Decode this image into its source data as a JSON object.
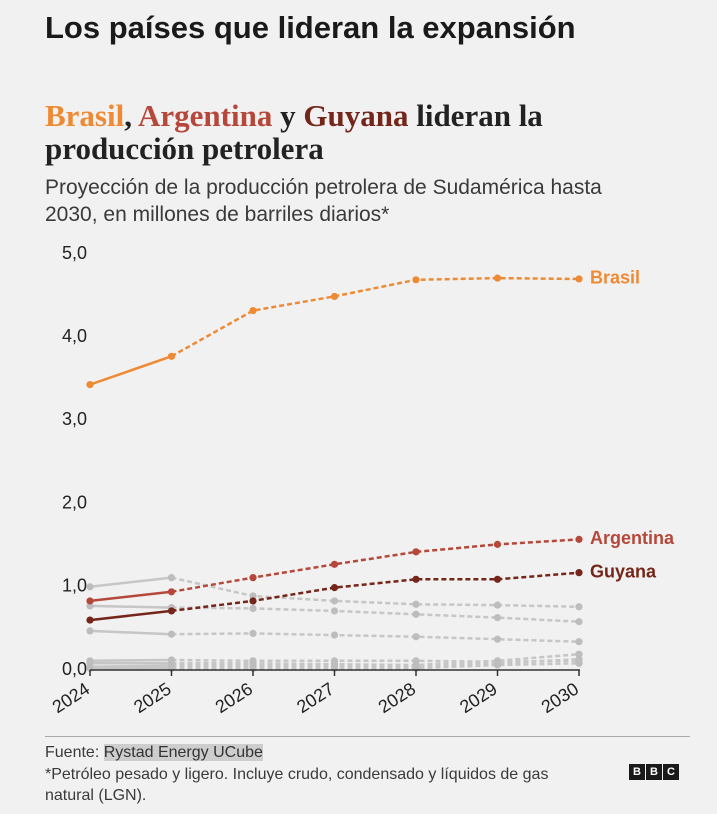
{
  "header": {
    "title": "Los países que lideran la expansión"
  },
  "chart_title": {
    "brasil": "Brasil",
    "sep1": ",",
    "argentina": "Argentina",
    "sep2": "y",
    "guyana": "Guyana",
    "rest": "lideran la producción petrolera"
  },
  "subtitle": "Proyección de la producción petrolera de Sudamérica hasta 2030, en millones de barriles diarios*",
  "colors": {
    "background": "#f1f1f1",
    "text": "#222222",
    "brasil": "#ef8a34",
    "argentina": "#b5483a",
    "guyana": "#74261a",
    "other_countries": "#c6c6c6",
    "axis": "#333333"
  },
  "chart_data": {
    "type": "line",
    "x": [
      2024,
      2025,
      2026,
      2027,
      2028,
      2029,
      2030
    ],
    "x_tick_labels": [
      "2024",
      "2025",
      "2026",
      "2027",
      "2028",
      "2029",
      "2030"
    ],
    "y_ticks": [
      0,
      1,
      2,
      3,
      4,
      5
    ],
    "y_tick_labels": [
      "0,0",
      "1,0",
      "2,0",
      "3,0",
      "4,0",
      "5,0"
    ],
    "xlim": [
      2024,
      2030
    ],
    "ylim": [
      0,
      5
    ],
    "grid": false,
    "dashed_from": 2025,
    "legend_placement": "line-end",
    "series": [
      {
        "name": "Brasil",
        "color": "#ef8a34",
        "highlight": true,
        "values": [
          3.43,
          3.77,
          4.32,
          4.49,
          4.69,
          4.71,
          4.7
        ]
      },
      {
        "name": "Argentina",
        "color": "#b5483a",
        "highlight": true,
        "values": [
          0.83,
          0.94,
          1.11,
          1.27,
          1.42,
          1.51,
          1.57
        ]
      },
      {
        "name": "Guyana",
        "color": "#74261a",
        "highlight": true,
        "values": [
          0.6,
          0.71,
          0.83,
          0.99,
          1.09,
          1.09,
          1.17
        ]
      },
      {
        "color": "#c6c6c6",
        "highlight": false,
        "values": [
          1.0,
          1.11,
          0.89,
          0.83,
          0.79,
          0.78,
          0.76
        ]
      },
      {
        "color": "#c6c6c6",
        "highlight": false,
        "values": [
          0.77,
          0.75,
          0.74,
          0.71,
          0.67,
          0.63,
          0.58
        ]
      },
      {
        "color": "#c6c6c6",
        "highlight": false,
        "values": [
          0.47,
          0.43,
          0.44,
          0.42,
          0.4,
          0.37,
          0.34
        ]
      },
      {
        "color": "#c6c6c6",
        "highlight": false,
        "values": [
          0.11,
          0.12,
          0.11,
          0.11,
          0.11,
          0.1,
          0.11
        ]
      },
      {
        "color": "#c6c6c6",
        "highlight": false,
        "values": [
          0.08,
          0.08,
          0.08,
          0.07,
          0.06,
          0.11,
          0.19
        ]
      },
      {
        "color": "#c6c6c6",
        "highlight": false,
        "values": [
          0.04,
          0.05,
          0.05,
          0.05,
          0.04,
          0.08,
          0.13
        ]
      },
      {
        "color": "#c6c6c6",
        "highlight": false,
        "values": [
          0.02,
          0.02,
          0.02,
          0.02,
          0.02,
          0.06,
          0.08
        ]
      }
    ]
  },
  "footer": {
    "source_label": "Fuente:",
    "source_name": "Rystad Energy UCube",
    "note": "*Petróleo pesado y ligero. Incluye crudo, condensado y líquidos de gas natural (LGN)."
  },
  "logo": {
    "letters": [
      "B",
      "B",
      "C"
    ]
  }
}
